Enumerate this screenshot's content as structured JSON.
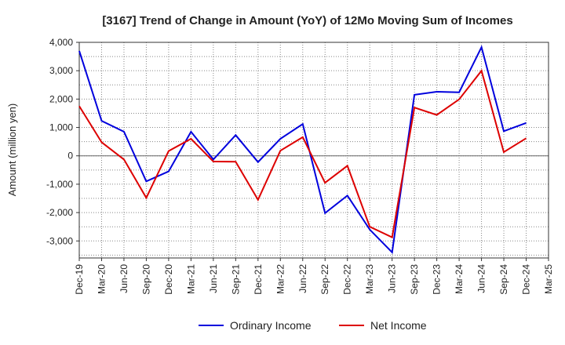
{
  "chart_data": {
    "type": "line",
    "title": "[3167]  Trend of Change in Amount (YoY) of 12Mo Moving Sum of Incomes",
    "xlabel": "",
    "ylabel": "Amount (million yen)",
    "categories": [
      "Dec-19",
      "Mar-20",
      "Jun-20",
      "Sep-20",
      "Dec-20",
      "Mar-21",
      "Jun-21",
      "Sep-21",
      "Dec-21",
      "Mar-22",
      "Jun-22",
      "Sep-22",
      "Dec-22",
      "Mar-23",
      "Jun-23",
      "Sep-23",
      "Dec-23",
      "Mar-24",
      "Jun-24",
      "Sep-24",
      "Dec-24",
      "Mar-25"
    ],
    "ylim": [
      -3600,
      4000
    ],
    "yticks": [
      4000,
      3000,
      2000,
      1000,
      0,
      -1000,
      -2000,
      -3000
    ],
    "ytick_labels": [
      "4,000",
      "3,000",
      "2,000",
      "1,000",
      "0",
      "-1,000",
      "-2,000",
      "-3,000"
    ],
    "grid": true,
    "legend": "bottom",
    "series": [
      {
        "name": "Ordinary Income",
        "color": "#0000dd",
        "values": [
          3700,
          1230,
          850,
          -900,
          -550,
          850,
          -130,
          730,
          -220,
          600,
          1120,
          -2020,
          -1400,
          -2600,
          -3400,
          2150,
          2260,
          2240,
          3830,
          870,
          1160,
          null
        ]
      },
      {
        "name": "Net Income",
        "color": "#dd0000",
        "values": [
          1750,
          480,
          -130,
          -1480,
          170,
          600,
          -200,
          -210,
          -1550,
          180,
          660,
          -950,
          -350,
          -2500,
          -2870,
          1700,
          1440,
          1990,
          3000,
          130,
          620,
          null
        ]
      }
    ]
  }
}
